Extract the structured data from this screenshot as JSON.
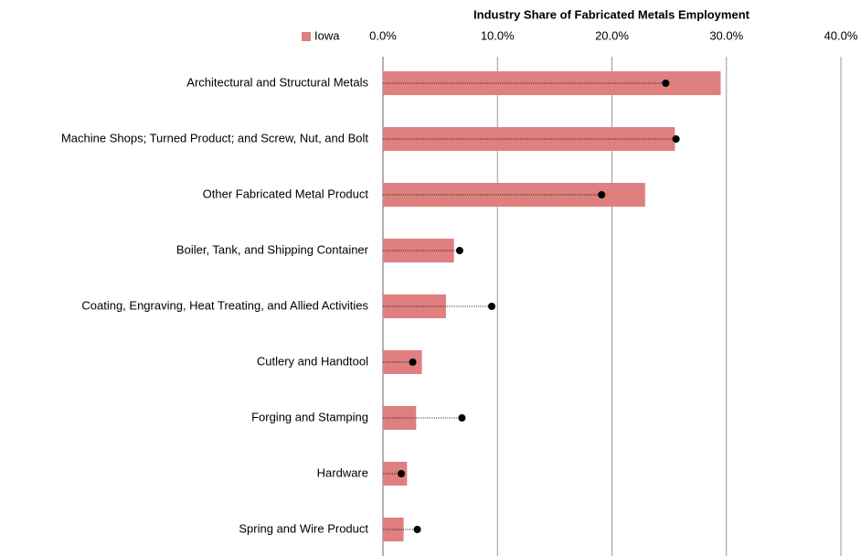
{
  "chart_data": {
    "type": "bar",
    "orientation": "horizontal",
    "title": "Industry Share of Fabricated Metals Employment",
    "categories": [
      "Architectural and Structural Metals",
      "Machine Shops; Turned Product; and Screw, Nut, and Bolt",
      "Other Fabricated Metal Product",
      "Boiler, Tank, and Shipping Container",
      "Coating, Engraving, Heat Treating, and Allied Activities",
      "Cutlery and Handtool",
      "Forging and Stamping",
      "Hardware",
      "Spring and Wire Product"
    ],
    "series": [
      {
        "name": "Iowa",
        "color": "#e07f7f",
        "values": [
          29.5,
          25.5,
          22.9,
          6.2,
          5.5,
          3.4,
          2.9,
          2.1,
          1.8
        ]
      },
      {
        "color": "#000000",
        "marker": "dot",
        "values": [
          24.7,
          25.6,
          19.1,
          6.7,
          9.5,
          2.6,
          6.9,
          1.6,
          3.0
        ]
      }
    ],
    "xlim": [
      0,
      40
    ],
    "xticks": [
      {
        "value": 0,
        "label": "0.0%"
      },
      {
        "value": 10,
        "label": "10.0%"
      },
      {
        "value": 20,
        "label": "20.0%"
      },
      {
        "value": 30,
        "label": "30.0%"
      },
      {
        "value": 40,
        "label": "40.0%"
      }
    ],
    "grid": true,
    "legend": "top"
  }
}
